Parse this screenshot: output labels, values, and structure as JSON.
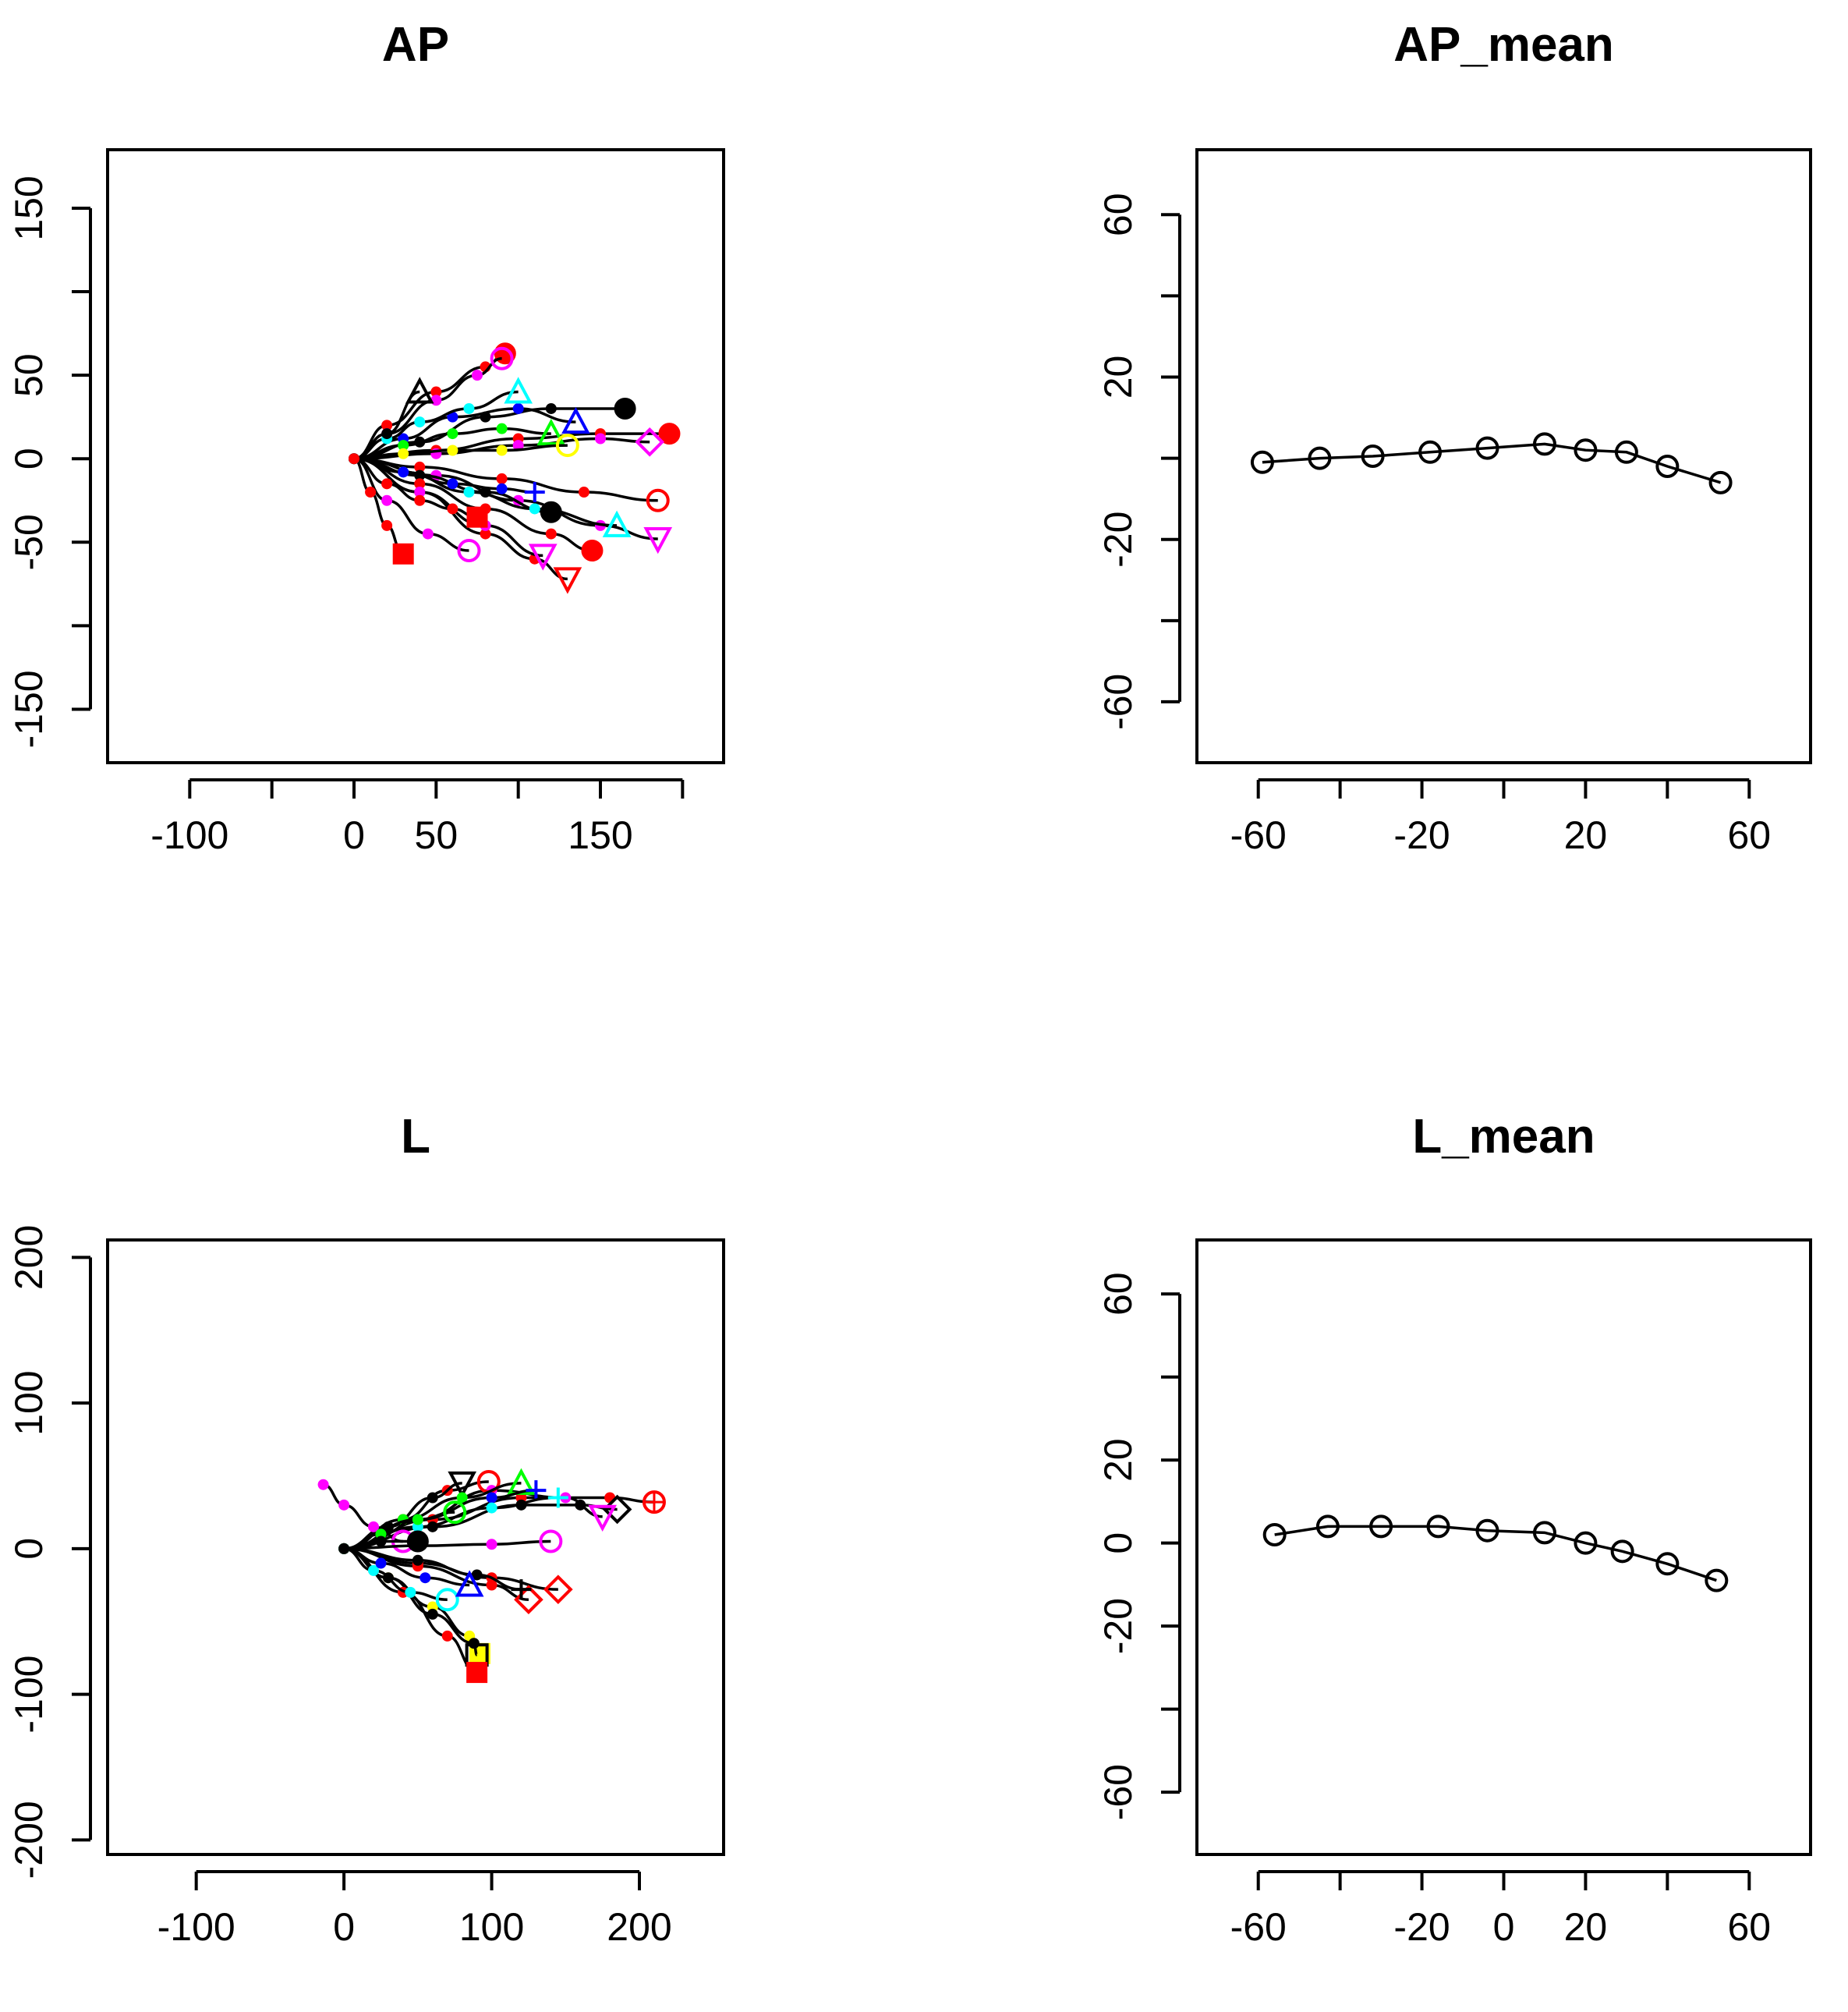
{
  "chart_data": [
    {
      "type": "line",
      "title": "AP",
      "xlabel": "",
      "ylabel": "",
      "xlim": [
        -150,
        225
      ],
      "ylim": [
        -182,
        185
      ],
      "x_ticks": [
        -100,
        -50,
        0,
        50,
        100,
        150,
        200
      ],
      "x_tick_labels": [
        "-100",
        "",
        "0",
        "50",
        "",
        "150",
        ""
      ],
      "y_ticks": [
        -150,
        -100,
        -50,
        0,
        50,
        100,
        150
      ],
      "y_tick_labels": [
        "-150",
        "",
        "-50",
        "0",
        "50",
        "",
        "150"
      ],
      "series": [
        {
          "color": "#000000",
          "marker": "filled-circle",
          "x": [
            0,
            40,
            80,
            120,
            165
          ],
          "y": [
            0,
            10,
            25,
            30,
            30
          ]
        },
        {
          "color": "#ff0000",
          "marker": "filled-circle",
          "x": [
            0,
            50,
            100,
            150,
            192
          ],
          "y": [
            0,
            5,
            12,
            15,
            15
          ]
        },
        {
          "color": "#ff00ff",
          "marker": "open-diamond",
          "x": [
            0,
            50,
            100,
            150,
            180
          ],
          "y": [
            0,
            3,
            8,
            12,
            10
          ]
        },
        {
          "color": "#ff0000",
          "marker": "open-circle",
          "x": [
            0,
            40,
            90,
            140,
            185
          ],
          "y": [
            0,
            -5,
            -12,
            -20,
            -25
          ]
        },
        {
          "color": "#ff00ff",
          "marker": "open-triangle-down",
          "x": [
            0,
            50,
            100,
            150,
            185
          ],
          "y": [
            0,
            -10,
            -25,
            -40,
            -48
          ]
        },
        {
          "color": "#000000",
          "marker": "filled-circle",
          "x": [
            0,
            40,
            80,
            120
          ],
          "y": [
            0,
            -10,
            -20,
            -32
          ]
        },
        {
          "color": "#ff0000",
          "marker": "filled-circle",
          "x": [
            0,
            40,
            80,
            120,
            145
          ],
          "y": [
            0,
            -15,
            -30,
            -45,
            -55
          ]
        },
        {
          "color": "#ff0000",
          "marker": "open-triangle-down",
          "x": [
            0,
            40,
            80,
            110,
            130
          ],
          "y": [
            0,
            -20,
            -45,
            -60,
            -72
          ]
        },
        {
          "color": "#ff00ff",
          "marker": "open-triangle-down",
          "x": [
            0,
            40,
            80,
            115
          ],
          "y": [
            0,
            -20,
            -40,
            -58
          ]
        },
        {
          "color": "#ff00ff",
          "marker": "open-circle",
          "x": [
            0,
            20,
            45,
            70
          ],
          "y": [
            0,
            -25,
            -45,
            -55
          ]
        },
        {
          "color": "#ff0000",
          "marker": "filled-square",
          "x": [
            0,
            10,
            20,
            30
          ],
          "y": [
            0,
            -20,
            -40,
            -57
          ]
        },
        {
          "color": "#ff0000",
          "marker": "filled-circle",
          "x": [
            0,
            20,
            50,
            80,
            92
          ],
          "y": [
            0,
            20,
            40,
            55,
            63
          ]
        },
        {
          "color": "#ff00ff",
          "marker": "open-circle",
          "x": [
            0,
            20,
            50,
            75,
            90
          ],
          "y": [
            0,
            15,
            35,
            50,
            60
          ]
        },
        {
          "color": "#0000ff",
          "marker": "open-triangle",
          "x": [
            0,
            30,
            60,
            100,
            135
          ],
          "y": [
            0,
            12,
            25,
            30,
            22
          ]
        },
        {
          "color": "#00ffff",
          "marker": "open-triangle",
          "x": [
            0,
            30,
            70,
            110,
            160
          ],
          "y": [
            0,
            -8,
            -20,
            -30,
            -40
          ]
        },
        {
          "color": "#00ff00",
          "marker": "open-triangle",
          "x": [
            0,
            30,
            60,
            90,
            120
          ],
          "y": [
            0,
            8,
            15,
            18,
            15
          ]
        },
        {
          "color": "#0000ff",
          "marker": "cross",
          "x": [
            0,
            30,
            60,
            90,
            110
          ],
          "y": [
            0,
            -8,
            -15,
            -18,
            -20
          ]
        },
        {
          "color": "#ffff00",
          "marker": "open-circle",
          "x": [
            0,
            30,
            60,
            90,
            130
          ],
          "y": [
            0,
            3,
            5,
            5,
            8
          ]
        },
        {
          "color": "#00ffff",
          "marker": "open-triangle",
          "x": [
            0,
            20,
            40,
            70,
            100
          ],
          "y": [
            0,
            12,
            22,
            30,
            40
          ]
        },
        {
          "color": "#000000",
          "marker": "open-triangle",
          "x": [
            0,
            20,
            40
          ],
          "y": [
            0,
            15,
            40
          ]
        },
        {
          "color": "#ff0000",
          "marker": "filled-square",
          "x": [
            0,
            20,
            40,
            60,
            75
          ],
          "y": [
            0,
            -15,
            -25,
            -30,
            -35
          ]
        }
      ]
    },
    {
      "type": "line",
      "title": "AP_mean",
      "xlabel": "",
      "ylabel": "",
      "xlim": [
        -75,
        75
      ],
      "ylim": [
        -75,
        76
      ],
      "x_ticks": [
        -60,
        -40,
        -20,
        0,
        20,
        40,
        60
      ],
      "x_tick_labels": [
        "-60",
        "",
        "-20",
        "",
        "20",
        "",
        "60"
      ],
      "y_ticks": [
        -60,
        -40,
        -20,
        0,
        20,
        40,
        60
      ],
      "y_tick_labels": [
        "-60",
        "",
        "-20",
        "",
        "20",
        "",
        "60"
      ],
      "series": [
        {
          "color": "#000000",
          "marker": "open-circle",
          "x": [
            -59,
            -45,
            -32,
            -18,
            -4,
            10,
            20,
            30,
            40,
            53
          ],
          "y": [
            -1,
            0,
            0.5,
            1.5,
            2.5,
            3.5,
            2,
            1.5,
            -2,
            -6
          ]
        }
      ]
    },
    {
      "type": "line",
      "title": "L",
      "xlabel": "",
      "ylabel": "",
      "xlim": [
        -160,
        257
      ],
      "ylim": [
        -210,
        212
      ],
      "x_ticks": [
        -100,
        0,
        100,
        200
      ],
      "x_tick_labels": [
        "-100",
        "0",
        "100",
        "200"
      ],
      "y_ticks": [
        -200,
        -100,
        0,
        100,
        200
      ],
      "y_tick_labels": [
        "-200",
        "-100",
        "0",
        "100",
        "200"
      ],
      "series": [
        {
          "color": "#ff0000",
          "marker": "open-circle-plus",
          "x": [
            0,
            60,
            120,
            180,
            210
          ],
          "y": [
            0,
            20,
            35,
            35,
            32
          ]
        },
        {
          "color": "#000000",
          "marker": "open-diamond",
          "x": [
            0,
            60,
            120,
            160,
            185
          ],
          "y": [
            0,
            15,
            30,
            30,
            27
          ]
        },
        {
          "color": "#ff00ff",
          "marker": "open-triangle-down",
          "x": [
            0,
            50,
            100,
            150,
            175
          ],
          "y": [
            0,
            20,
            40,
            35,
            22
          ]
        },
        {
          "color": "#ff0000",
          "marker": "open-circle",
          "x": [
            0,
            40,
            70,
            98
          ],
          "y": [
            0,
            20,
            40,
            46
          ]
        },
        {
          "color": "#000000",
          "marker": "open-triangle-down",
          "x": [
            0,
            30,
            60,
            80
          ],
          "y": [
            0,
            15,
            35,
            45
          ]
        },
        {
          "color": "#00ff00",
          "marker": "open-triangle",
          "x": [
            0,
            40,
            80,
            120
          ],
          "y": [
            0,
            20,
            35,
            45
          ]
        },
        {
          "color": "#0000ff",
          "marker": "cross",
          "x": [
            0,
            50,
            100,
            130
          ],
          "y": [
            0,
            20,
            35,
            40
          ]
        },
        {
          "color": "#00ffff",
          "marker": "cross",
          "x": [
            0,
            50,
            100,
            145
          ],
          "y": [
            0,
            15,
            28,
            35
          ]
        },
        {
          "color": "#ff00ff",
          "marker": "open-circle",
          "x": [
            -14,
            0,
            20,
            40
          ],
          "y": [
            44,
            30,
            15,
            5
          ]
        },
        {
          "color": "#ff00ff",
          "marker": "open-circle",
          "x": [
            0,
            50,
            100,
            140
          ],
          "y": [
            0,
            2,
            3,
            5
          ]
        },
        {
          "color": "#ff0000",
          "marker": "open-diamond",
          "x": [
            0,
            50,
            100,
            145
          ],
          "y": [
            0,
            -10,
            -20,
            -28
          ]
        },
        {
          "color": "#ff0000",
          "marker": "open-diamond",
          "x": [
            0,
            50,
            100,
            125
          ],
          "y": [
            0,
            -12,
            -25,
            -35
          ]
        },
        {
          "color": "#000000",
          "marker": "cross",
          "x": [
            0,
            50,
            90,
            120
          ],
          "y": [
            0,
            -8,
            -18,
            -28
          ]
        },
        {
          "color": "#ffff00",
          "marker": "filled-square",
          "x": [
            0,
            30,
            60,
            85,
            92
          ],
          "y": [
            0,
            -20,
            -40,
            -60,
            -72
          ]
        },
        {
          "color": "#000000",
          "marker": "open-square",
          "x": [
            0,
            30,
            60,
            88,
            90
          ],
          "y": [
            0,
            -20,
            -45,
            -65,
            -73
          ]
        },
        {
          "color": "#ff0000",
          "marker": "filled-square",
          "x": [
            0,
            40,
            70,
            90
          ],
          "y": [
            0,
            -30,
            -60,
            -85
          ]
        },
        {
          "color": "#00ffff",
          "marker": "open-circle",
          "x": [
            0,
            20,
            45,
            70
          ],
          "y": [
            0,
            -15,
            -30,
            -35
          ]
        },
        {
          "color": "#0000ff",
          "marker": "open-triangle",
          "x": [
            0,
            25,
            55,
            85
          ],
          "y": [
            0,
            -10,
            -20,
            -25
          ]
        },
        {
          "color": "#00ff00",
          "marker": "open-circle",
          "x": [
            0,
            25,
            50,
            75
          ],
          "y": [
            0,
            10,
            20,
            25
          ]
        },
        {
          "color": "#000000",
          "marker": "filled-circle",
          "x": [
            0,
            25,
            50
          ],
          "y": [
            0,
            5,
            5
          ]
        }
      ]
    },
    {
      "type": "line",
      "title": "L_mean",
      "xlabel": "",
      "ylabel": "",
      "xlim": [
        -75,
        75
      ],
      "ylim": [
        -75,
        73
      ],
      "x_ticks": [
        -60,
        -40,
        -20,
        0,
        20,
        40,
        60
      ],
      "x_tick_labels": [
        "-60",
        "",
        "-20",
        "0",
        "20",
        "",
        "60"
      ],
      "y_ticks": [
        -60,
        -40,
        -20,
        0,
        20,
        40,
        60
      ],
      "y_tick_labels": [
        "-60",
        "",
        "-20",
        "0",
        "20",
        "",
        "60"
      ],
      "series": [
        {
          "color": "#000000",
          "marker": "open-circle",
          "x": [
            -56,
            -43,
            -30,
            -16,
            -4,
            10,
            20,
            29,
            40,
            52
          ],
          "y": [
            2,
            4,
            4,
            4,
            3,
            2.5,
            0,
            -2,
            -5,
            -9
          ]
        }
      ]
    }
  ]
}
